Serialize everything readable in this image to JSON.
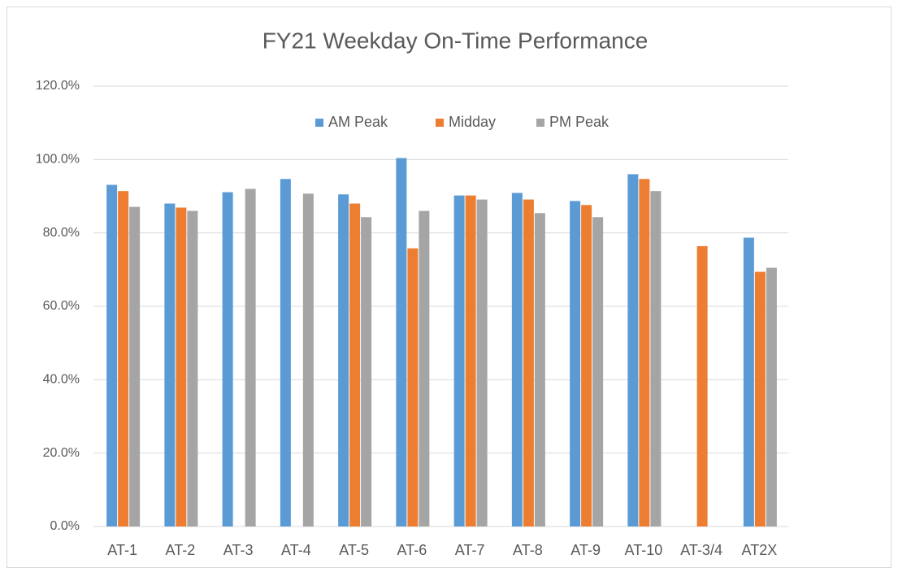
{
  "chart_data": {
    "type": "bar",
    "title": "FY21 Weekday On-Time Performance",
    "categories": [
      "AT-1",
      "AT-2",
      "AT-3",
      "AT-4",
      "AT-5",
      "AT-6",
      "AT-7",
      "AT-8",
      "AT-9",
      "AT-10",
      "AT-3/4",
      "AT2X"
    ],
    "series": [
      {
        "name": "AM Peak",
        "color": "#5b9bd5",
        "values": [
          93.1,
          88.0,
          91.1,
          94.7,
          90.5,
          100.4,
          90.2,
          90.9,
          88.7,
          96.0,
          null,
          78.7
        ]
      },
      {
        "name": "Midday",
        "color": "#ed7d31",
        "values": [
          91.4,
          86.9,
          null,
          null,
          88.0,
          75.8,
          90.2,
          89.1,
          87.6,
          94.7,
          76.4,
          69.4
        ]
      },
      {
        "name": "PM Peak",
        "color": "#a5a5a5",
        "values": [
          87.1,
          86.0,
          92.0,
          90.7,
          84.3,
          86.0,
          89.1,
          85.4,
          84.3,
          91.4,
          null,
          70.5
        ]
      }
    ],
    "ylim": [
      0,
      120
    ],
    "yticks": [
      {
        "value": 0,
        "label": "0.0%"
      },
      {
        "value": 20,
        "label": "20.0%"
      },
      {
        "value": 40,
        "label": "40.0%"
      },
      {
        "value": 60,
        "label": "60.0%"
      },
      {
        "value": 80,
        "label": "80.0%"
      },
      {
        "value": 100,
        "label": "100.0%"
      },
      {
        "value": 120,
        "label": "120.0%"
      }
    ],
    "grid": true,
    "legend": "top"
  }
}
